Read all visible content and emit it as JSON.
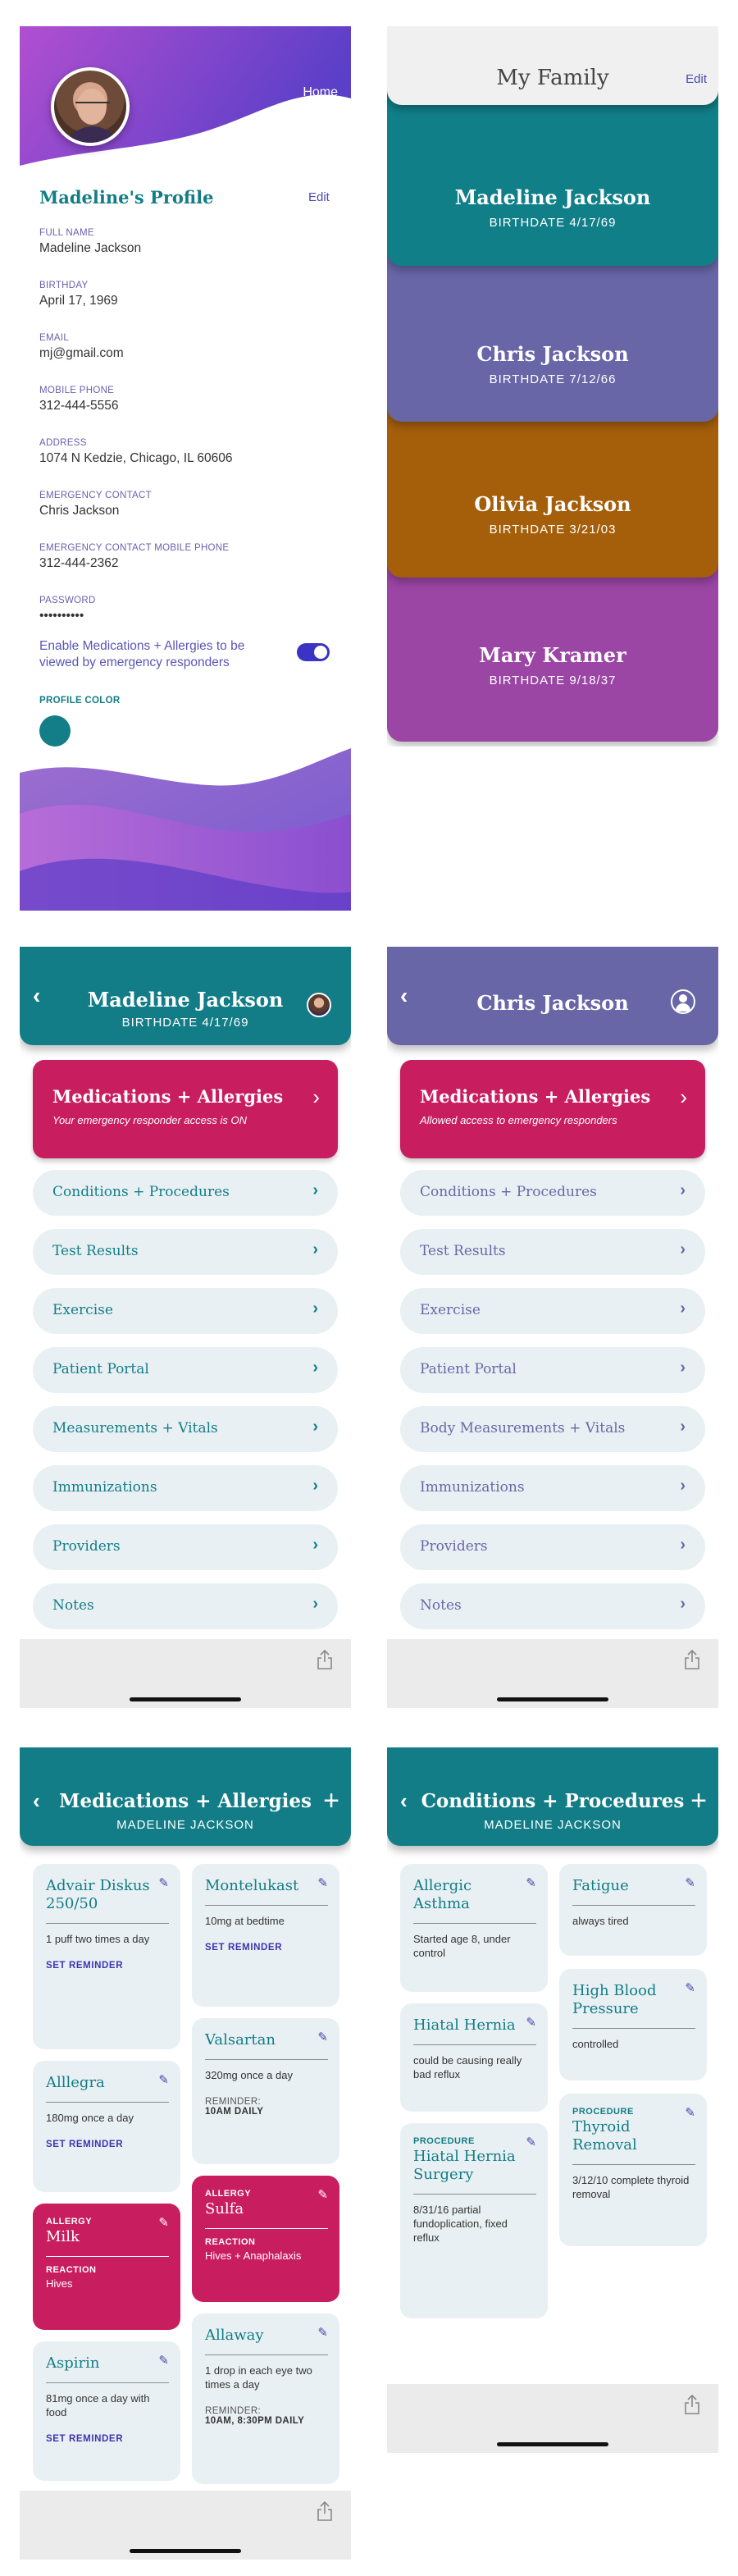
{
  "profile": {
    "home_label": "Home",
    "title": "Madeline's Profile",
    "edit_label": "Edit",
    "fields": [
      {
        "label": "FULL NAME",
        "value": "Madeline Jackson"
      },
      {
        "label": "BIRTHDAY",
        "value": "April 17, 1969"
      },
      {
        "label": "EMAIL",
        "value": "mj@gmail.com"
      },
      {
        "label": "MOBILE PHONE",
        "value": "312-444-5556"
      },
      {
        "label": "ADDRESS",
        "value": "1074  N Kedzie, Chicago, IL 60606"
      },
      {
        "label": "EMERGENCY CONTACT",
        "value": "Chris Jackson"
      },
      {
        "label": "EMERGENCY CONTACT MOBILE PHONE",
        "value": "312-444-2362"
      },
      {
        "label": "PASSWORD",
        "value": "••••••••••"
      }
    ],
    "toggle_label": "Enable Medications + Allergies to be viewed by emergency responders",
    "toggle_on": true,
    "profile_color_label": "PROFILE COLOR",
    "profile_color": "#137e87"
  },
  "family": {
    "title": "My Family",
    "edit_label": "Edit",
    "members": [
      {
        "name": "Madeline Jackson",
        "birthdate": "BIRTHDATE 4/17/69",
        "color": "#117f88"
      },
      {
        "name": "Chris Jackson",
        "birthdate": "BIRTHDATE 7/12/66",
        "color": "#6866a7"
      },
      {
        "name": "Olivia Jackson",
        "birthdate": "BIRTHDATE 3/21/03",
        "color": "#a55f0b"
      },
      {
        "name": "Mary Kramer",
        "birthdate": "BIRTHDATE 9/18/37",
        "color": "#9b45a5"
      }
    ]
  },
  "madeline_detail": {
    "name": "Madeline Jackson",
    "birthdate": "BIRTHDATE 4/17/69",
    "header_color": "#127d86",
    "med_title": "Medications + Allergies",
    "med_subtitle": "Your emergency responder access is ON",
    "items": [
      "Conditions + Procedures",
      "Test Results",
      "Exercise",
      "Patient Portal",
      "Measurements + Vitals",
      "Immunizations",
      "Providers",
      "Notes"
    ]
  },
  "chris_detail": {
    "name": "Chris Jackson",
    "header_color": "#6866a7",
    "med_title": "Medications + Allergies",
    "med_subtitle": "Allowed access to emergency responders",
    "items": [
      "Conditions + Procedures",
      "Test Results",
      "Exercise",
      "Patient Portal",
      "Body Measurements + Vitals",
      "Immunizations",
      "Providers",
      "Notes"
    ]
  },
  "meds": {
    "title": "Medications + Allergies",
    "subtitle": "MADELINE JACKSON",
    "cards": [
      {
        "title": "Advair Diskus 250/50",
        "desc": "1 puff two times a day",
        "action": "SET REMINDER"
      },
      {
        "title": "Alllegra",
        "desc": "180mg once a day",
        "action": "SET REMINDER"
      },
      {
        "tag": "ALLERGY",
        "title": "Milk",
        "sub": "REACTION",
        "desc": "Hives"
      },
      {
        "title": "Aspirin",
        "desc": "81mg once a day with food",
        "action": "SET REMINDER"
      },
      {
        "title": "Montelukast",
        "desc": "10mg at bedtime",
        "action": "SET REMINDER"
      },
      {
        "title": "Valsartan",
        "desc": "320mg once a day",
        "reminder_label": "REMINDER:",
        "reminder_value": "10AM DAILY"
      },
      {
        "tag": "ALLERGY",
        "title": "Sulfa",
        "sub": "REACTION",
        "desc": "Hives + Anaphalaxis"
      },
      {
        "title": "Allaway",
        "desc": "1 drop in each eye two times a day",
        "reminder_label": "REMINDER:",
        "reminder_value": "10AM, 8:30PM DAILY"
      }
    ]
  },
  "conditions": {
    "title": "Conditions + Procedures",
    "subtitle": "MADELINE JACKSON",
    "cards": [
      {
        "title": "Allergic Asthma",
        "desc": "Started age 8, under control"
      },
      {
        "title": "Hiatal Hernia",
        "desc": "could be causing really bad reflux"
      },
      {
        "tag": "PROCEDURE",
        "title": "Hiatal Hernia Surgery",
        "desc": "8/31/16 partial fundoplication, fixed reflux"
      },
      {
        "title": "Fatigue",
        "desc": "always tired"
      },
      {
        "title": "High Blood Pressure",
        "desc": "controlled"
      },
      {
        "tag": "PROCEDURE",
        "title": "Thyroid Removal",
        "desc": "3/12/10 complete thyroid removal"
      }
    ]
  }
}
